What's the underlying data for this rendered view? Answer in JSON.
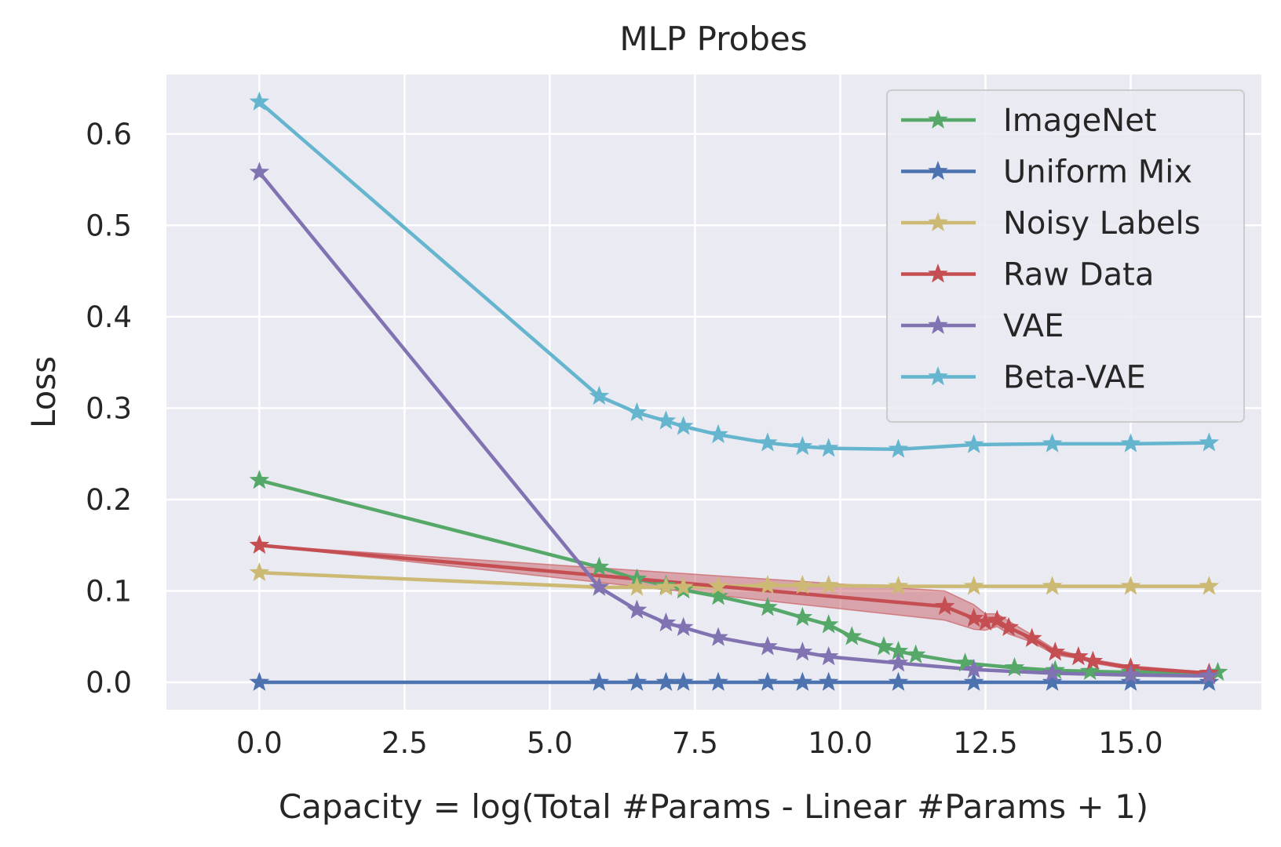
{
  "chart_data": {
    "type": "line",
    "title": "MLP Probes",
    "xlabel": "Capacity = log(Total #Params - Linear #Params + 1)",
    "ylabel": "Loss",
    "xlim": [
      -1.6,
      17.25
    ],
    "ylim": [
      -0.03,
      0.665
    ],
    "xticks": [
      "0.0",
      "2.5",
      "5.0",
      "7.5",
      "10.0",
      "12.5",
      "15.0"
    ],
    "yticks": [
      "0.0",
      "0.1",
      "0.2",
      "0.3",
      "0.4",
      "0.5",
      "0.6"
    ],
    "xtick_values": [
      0,
      2.5,
      5,
      7.5,
      10,
      12.5,
      15
    ],
    "ytick_values": [
      0,
      0.1,
      0.2,
      0.3,
      0.4,
      0.5,
      0.6
    ],
    "grid": true,
    "background": "#eaeaf2",
    "legend_position": "top-right",
    "marker": "star",
    "series": [
      {
        "name": "ImageNet",
        "color": "#55a868",
        "x": [
          0,
          5.85,
          6.5,
          7.0,
          7.3,
          7.9,
          8.75,
          9.35,
          9.8,
          10.2,
          10.75,
          11.0,
          11.3,
          12.15,
          13.0,
          13.7,
          14.3,
          15.0,
          16.5
        ],
        "y": [
          0.221,
          0.126,
          0.113,
          0.106,
          0.101,
          0.094,
          0.082,
          0.071,
          0.063,
          0.05,
          0.039,
          0.034,
          0.03,
          0.021,
          0.016,
          0.013,
          0.012,
          0.011,
          0.011
        ]
      },
      {
        "name": "Uniform Mix",
        "color": "#4c72b0",
        "x": [
          0,
          5.85,
          6.5,
          7.0,
          7.3,
          7.9,
          8.75,
          9.35,
          9.8,
          11.0,
          12.3,
          13.65,
          15.0,
          16.35
        ],
        "y": [
          0,
          0,
          0,
          0,
          0,
          0,
          0,
          0,
          0,
          0,
          0,
          0,
          0,
          0
        ]
      },
      {
        "name": "Noisy Labels",
        "color": "#ccb974",
        "x": [
          0,
          5.85,
          6.5,
          7.0,
          7.3,
          7.9,
          8.75,
          9.35,
          9.8,
          11.0,
          12.3,
          13.65,
          15.0,
          16.35
        ],
        "y": [
          0.12,
          0.104,
          0.104,
          0.104,
          0.104,
          0.105,
          0.106,
          0.106,
          0.106,
          0.105,
          0.105,
          0.105,
          0.105,
          0.105
        ]
      },
      {
        "name": "Raw Data",
        "color": "#c44e52",
        "x": [
          0,
          11.8,
          12.3,
          12.5,
          12.7,
          12.9,
          13.3,
          13.7,
          14.1,
          14.35,
          15.0,
          16.35
        ],
        "y": [
          0.15,
          0.083,
          0.07,
          0.066,
          0.068,
          0.06,
          0.048,
          0.033,
          0.028,
          0.023,
          0.016,
          0.01
        ],
        "band_upper": [
          0.15,
          0.1,
          0.085,
          0.075,
          0.075,
          0.067,
          0.052,
          0.036,
          0.03,
          0.025,
          0.018,
          0.011
        ],
        "band_lower": [
          0.15,
          0.068,
          0.058,
          0.057,
          0.061,
          0.053,
          0.044,
          0.03,
          0.026,
          0.021,
          0.014,
          0.009
        ]
      },
      {
        "name": "VAE",
        "color": "#8172b2",
        "x": [
          0,
          5.85,
          6.5,
          7.0,
          7.3,
          7.9,
          8.75,
          9.35,
          9.8,
          11.0,
          12.3,
          13.65,
          15.0,
          16.35
        ],
        "y": [
          0.558,
          0.104,
          0.079,
          0.065,
          0.06,
          0.049,
          0.039,
          0.033,
          0.028,
          0.021,
          0.014,
          0.01,
          0.008,
          0.007
        ]
      },
      {
        "name": "Beta-VAE",
        "color": "#64b5cd",
        "x": [
          0,
          5.85,
          6.5,
          7.0,
          7.3,
          7.9,
          8.75,
          9.35,
          9.8,
          11.0,
          12.3,
          13.65,
          15.0,
          16.35
        ],
        "y": [
          0.635,
          0.313,
          0.295,
          0.286,
          0.28,
          0.271,
          0.262,
          0.258,
          0.256,
          0.255,
          0.26,
          0.261,
          0.261,
          0.262
        ]
      }
    ]
  }
}
